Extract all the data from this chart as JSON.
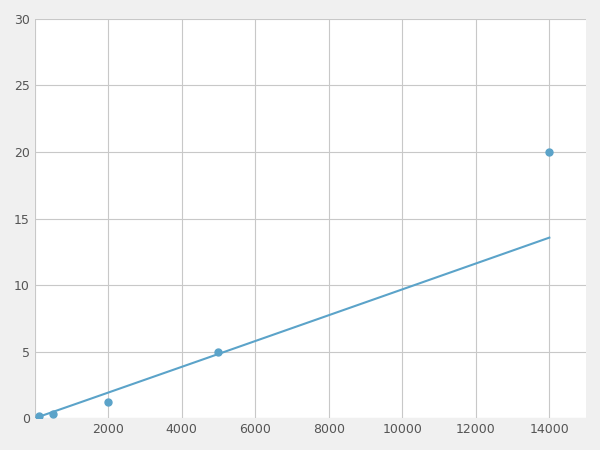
{
  "x_points": [
    125,
    500,
    2000,
    5000,
    14000
  ],
  "y_points": [
    0.2,
    0.3,
    1.2,
    5.0,
    20.0
  ],
  "line_color": "#5ba3c9",
  "marker_color": "#5ba3c9",
  "marker_size": 5,
  "line_width": 1.5,
  "xlim": [
    0,
    15000
  ],
  "ylim": [
    0,
    30
  ],
  "xticks": [
    0,
    2000,
    4000,
    6000,
    8000,
    10000,
    12000,
    14000
  ],
  "yticks": [
    0,
    5,
    10,
    15,
    20,
    25,
    30
  ],
  "xticklabels": [
    "",
    "2000",
    "4000",
    "6000",
    "8000",
    "10000",
    "12000",
    "14000"
  ],
  "grid_color": "#c8c8c8",
  "background_color": "#ffffff",
  "figure_bg": "#f0f0f0"
}
